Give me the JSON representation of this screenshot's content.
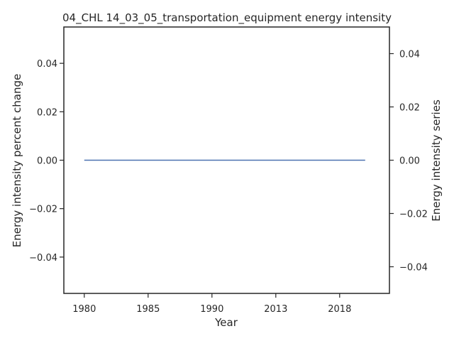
{
  "chart_data": {
    "type": "line",
    "title": "04_CHL 14_03_05_transportation_equipment energy intensity",
    "xlabel": "Year",
    "ylabel_left": "Energy intensity percent change",
    "ylabel_right": "Energy intensity series",
    "x_tick_labels": [
      "1980",
      "1985",
      "1990",
      "2013",
      "2018"
    ],
    "x_tick_positions": [
      0,
      5,
      10,
      15,
      20
    ],
    "xlim": [
      -1.6,
      23.9
    ],
    "left_ylim": [
      -0.055,
      0.055
    ],
    "left_yticks": [
      -0.04,
      -0.02,
      0.0,
      0.02,
      0.04
    ],
    "left_ytick_labels": [
      "−0.04",
      "−0.02",
      "0.00",
      "0.02",
      "0.04"
    ],
    "right_ylim": [
      -0.05,
      0.05
    ],
    "right_yticks": [
      -0.04,
      -0.02,
      0.0,
      0.02,
      0.04
    ],
    "right_ytick_labels": [
      "−0.04",
      "−0.02",
      "0.00",
      "0.02",
      "0.04"
    ],
    "grid": false,
    "series": [
      {
        "axis": "left",
        "color": "#4c72b0",
        "x": [
          0,
          22
        ],
        "y": [
          0,
          0
        ]
      }
    ]
  }
}
